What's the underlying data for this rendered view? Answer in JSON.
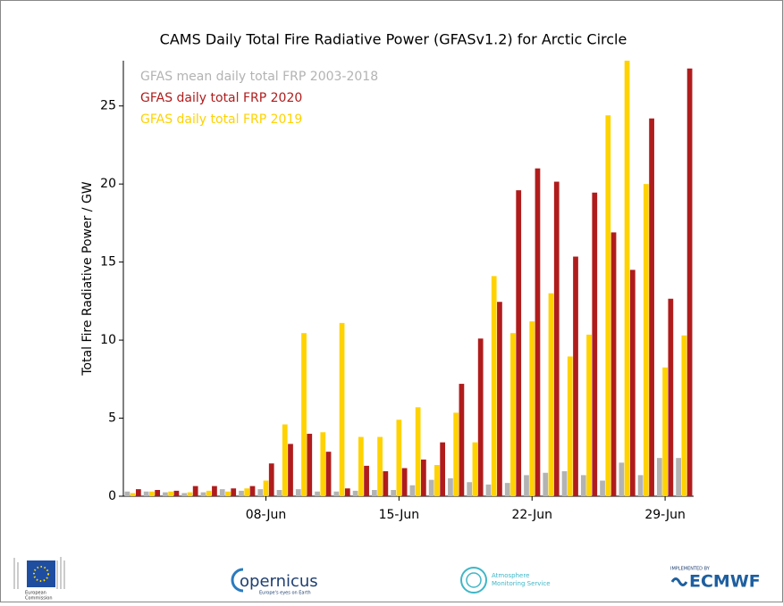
{
  "chart_data": {
    "type": "bar",
    "title": "CAMS Daily Total Fire Radiative Power (GFASv1.2) for Arctic Circle",
    "ylabel": "Total Fire Radiative Power / GW",
    "categories": [
      null,
      null,
      null,
      null,
      null,
      null,
      null,
      "08-Jun",
      null,
      null,
      null,
      null,
      null,
      null,
      "15-Jun",
      null,
      null,
      null,
      null,
      null,
      null,
      "22-Jun",
      null,
      null,
      null,
      null,
      null,
      null,
      "29-Jun",
      null
    ],
    "series": [
      {
        "name": "GFAS mean daily total FRP 2003-2018",
        "color": "#b3b3b3",
        "values": [
          0.3,
          0.3,
          0.25,
          0.2,
          0.25,
          0.45,
          0.35,
          0.45,
          0.4,
          0.45,
          0.3,
          0.3,
          0.35,
          0.4,
          0.4,
          0.7,
          1.05,
          1.15,
          0.9,
          0.75,
          0.85,
          1.35,
          1.5,
          1.6,
          1.35,
          1.0,
          2.15,
          1.35,
          2.45,
          2.45
        ]
      },
      {
        "name": "GFAS daily total FRP 2020",
        "color": "#b01c1c",
        "values": [
          0.45,
          0.4,
          0.35,
          0.65,
          0.65,
          0.5,
          0.65,
          2.1,
          3.35,
          4.0,
          2.85,
          0.5,
          1.95,
          1.6,
          1.8,
          2.35,
          3.45,
          7.2,
          10.1,
          12.45,
          19.6,
          21.0,
          20.15,
          15.35,
          19.45,
          16.9,
          14.5,
          24.2,
          12.65,
          27.4
        ]
      },
      {
        "name": "GFAS daily total FRP 2019",
        "color": "#ffd200",
        "values": [
          0.2,
          0.3,
          0.3,
          0.25,
          0.35,
          0.3,
          0.5,
          1.0,
          4.6,
          10.45,
          4.1,
          11.1,
          3.8,
          3.8,
          4.9,
          5.7,
          2.0,
          5.35,
          3.45,
          14.1,
          10.45,
          11.2,
          13.0,
          8.95,
          10.35,
          24.4,
          27.9,
          20.0,
          8.25,
          10.3
        ]
      }
    ],
    "ylim": [
      0,
      27.9
    ],
    "yticks": [
      0,
      5,
      10,
      15,
      20,
      25
    ],
    "grid": false,
    "legend": "upper-left"
  },
  "footer": {
    "logos": [
      "European",
      "Commission",
      "opernicus",
      "Europe's eyes on Earth",
      "Atmosphere",
      "Monitoring Service",
      "IMPLEMENTED BY",
      "ECMWF"
    ]
  }
}
